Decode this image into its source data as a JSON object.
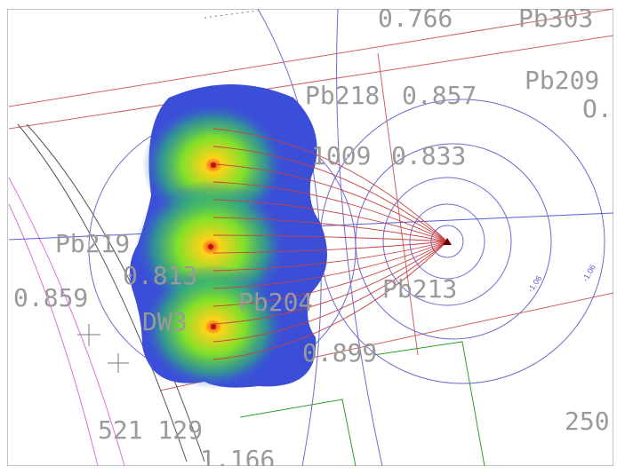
{
  "labels": [
    "0.766",
    "Pb303",
    "Pb209",
    "O.",
    "Pb218",
    "0.857",
    "1009",
    "0.833",
    "Pb219",
    "0.813",
    "0.859",
    "Pb204",
    "Pb213",
    "DW3",
    "0.899",
    "521 129",
    "1.166",
    "250"
  ],
  "contour_labels": [
    "-1.06",
    "-1.06"
  ]
}
